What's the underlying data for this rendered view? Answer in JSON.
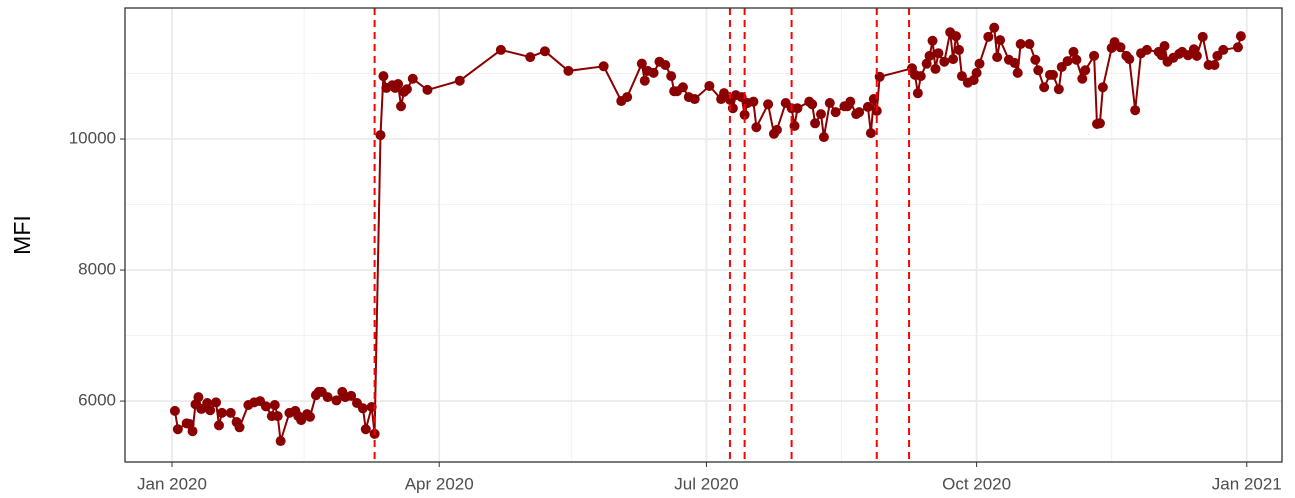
{
  "chart_data": {
    "type": "line",
    "y_label": "MFI",
    "x": [
      1,
      2,
      5,
      6,
      7,
      8,
      9,
      10,
      12,
      13,
      15,
      16,
      17,
      20,
      22,
      23,
      26,
      28,
      30,
      32,
      34,
      35,
      36,
      37,
      40,
      42,
      43,
      44,
      46,
      47,
      49,
      50,
      51,
      53,
      56,
      58,
      59,
      61,
      63,
      65,
      66,
      68,
      69,
      71,
      72,
      73,
      75,
      76,
      77,
      78,
      79,
      80,
      82,
      87,
      98,
      112,
      122,
      127,
      135,
      147,
      153,
      155,
      160,
      161,
      162,
      164,
      166,
      168,
      170,
      171,
      172,
      174,
      176,
      178,
      183,
      187,
      188,
      190,
      191,
      192,
      194,
      195,
      196,
      198,
      199,
      203,
      205,
      206,
      209,
      211,
      212,
      213,
      217,
      218,
      219,
      221,
      222,
      224,
      226,
      229,
      230,
      231,
      233,
      234,
      237,
      238,
      239,
      240,
      241,
      252,
      253,
      254,
      255,
      257,
      258,
      259,
      260,
      261,
      263,
      265,
      266,
      267,
      268,
      269,
      271,
      273,
      274,
      275,
      278,
      280,
      281,
      282,
      285,
      287,
      288,
      289,
      292,
      294,
      295,
      297,
      299,
      300,
      302,
      303,
      305,
      307,
      308,
      310,
      311,
      314,
      315,
      316,
      317,
      320,
      321,
      323,
      325,
      326,
      328,
      330,
      332,
      336,
      337,
      338,
      339,
      341,
      343,
      344,
      346,
      348,
      349,
      351,
      353,
      355,
      356,
      358,
      363,
      364
    ],
    "values": [
      5850,
      5570,
      5660,
      5650,
      5540,
      5950,
      6060,
      5880,
      5970,
      5860,
      5980,
      5630,
      5820,
      5820,
      5680,
      5600,
      5940,
      5980,
      6000,
      5920,
      5770,
      5940,
      5770,
      5390,
      5820,
      5850,
      5770,
      5710,
      5800,
      5760,
      6090,
      6140,
      6140,
      6060,
      6010,
      6140,
      6060,
      6080,
      5970,
      5890,
      5570,
      5910,
      5500,
      10060,
      10960,
      10780,
      10820,
      10780,
      10840,
      10500,
      10720,
      10760,
      10920,
      10750,
      10890,
      11360,
      11250,
      11340,
      11040,
      11110,
      10580,
      10640,
      11150,
      10890,
      11040,
      11010,
      11180,
      11130,
      10960,
      10730,
      10730,
      10790,
      10640,
      10610,
      10810,
      10610,
      10700,
      10600,
      10470,
      10670,
      10640,
      10370,
      10550,
      10570,
      10180,
      10530,
      10080,
      10140,
      10550,
      10470,
      10200,
      10470,
      10570,
      10530,
      10240,
      10380,
      10030,
      10550,
      10410,
      10500,
      10500,
      10570,
      10380,
      10410,
      10490,
      10090,
      10610,
      10430,
      10950,
      11080,
      10980,
      10700,
      10960,
      11150,
      11270,
      11500,
      11070,
      11310,
      11180,
      11630,
      11220,
      11570,
      11360,
      10960,
      10860,
      10900,
      11010,
      11150,
      11560,
      11700,
      11250,
      11510,
      11210,
      11160,
      11010,
      11450,
      11450,
      11210,
      11050,
      10790,
      10980,
      10980,
      10760,
      11100,
      11190,
      11330,
      11210,
      10920,
      11050,
      11270,
      10230,
      10240,
      10790,
      11390,
      11480,
      11400,
      11270,
      11220,
      10440,
      11310,
      11360,
      11330,
      11280,
      11420,
      11180,
      11240,
      11300,
      11330,
      11280,
      11370,
      11270,
      11560,
      11130,
      11130,
      11270,
      11360,
      11400,
      11570
    ],
    "color": "#8b0000",
    "vlines": [
      69,
      190,
      195,
      211,
      240,
      251
    ],
    "vline_color": "#ff0000",
    "xlim": [
      -16,
      378
    ],
    "xticks": [
      {
        "value": 0,
        "label": "Jan 2020"
      },
      {
        "value": 91,
        "label": "Apr 2020"
      },
      {
        "value": 182,
        "label": "Jul 2020"
      },
      {
        "value": 274,
        "label": "Oct 2020"
      },
      {
        "value": 366,
        "label": "Jan 2021"
      }
    ],
    "xminor": [
      45,
      136,
      228,
      320
    ],
    "ylim": [
      5070,
      12000
    ],
    "yticks": [
      6000,
      8000,
      10000
    ],
    "yminor": [
      7000,
      9000,
      11000
    ],
    "grid": true
  }
}
